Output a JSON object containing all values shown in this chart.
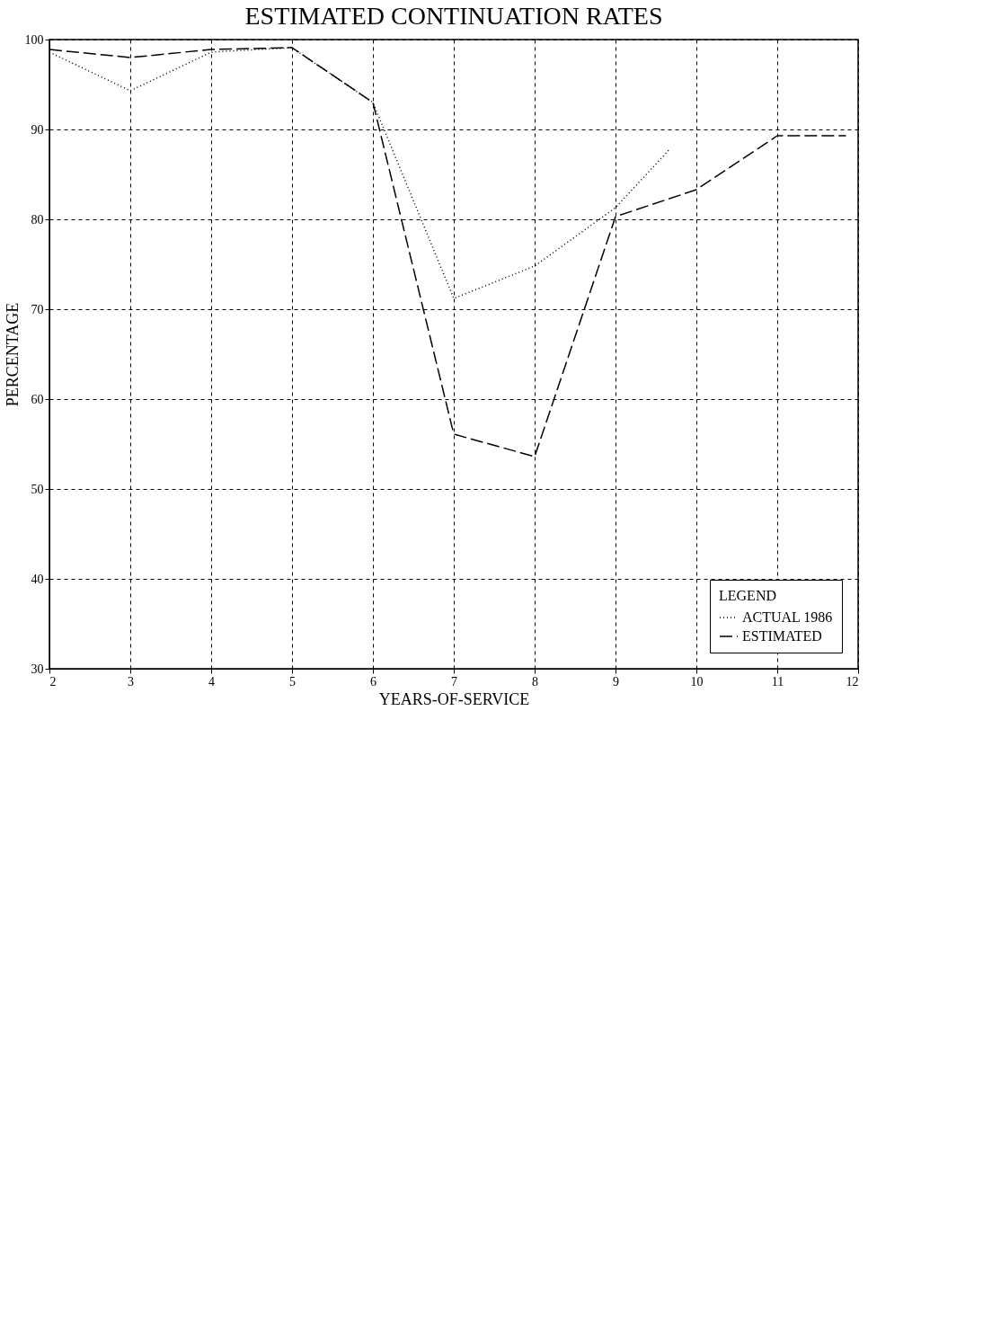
{
  "chart_data": {
    "type": "line",
    "title": "ESTIMATED CONTINUATION RATES",
    "xlabel": "YEARS-OF-SERVICE",
    "ylabel": "PERCENTAGE",
    "legend_title": "LEGEND",
    "xlim": [
      2,
      12
    ],
    "xticks": [
      2,
      3,
      4,
      5,
      6,
      7,
      8,
      9,
      10,
      11,
      12
    ],
    "ylim": [
      30,
      100
    ],
    "yticks": [
      30,
      40,
      50,
      60,
      70,
      80,
      90,
      100
    ],
    "grid": true,
    "legend": "bottom right",
    "marker": "none",
    "series": [
      {
        "name": "ACTUAL 1986",
        "color": "#000000",
        "line_style": "dotted",
        "x": [
          2,
          3,
          4,
          5,
          6,
          7,
          8,
          9,
          9.67
        ],
        "values": [
          98.6,
          94.3,
          98.6,
          99.1,
          93.0,
          71.2,
          74.8,
          81.3,
          87.8
        ]
      },
      {
        "name": "ESTIMATED",
        "color": "#000000",
        "line_style": "dashed",
        "x": [
          2,
          3,
          4,
          5,
          6,
          7,
          8,
          9,
          10,
          11,
          11.85
        ],
        "values": [
          98.9,
          98.0,
          98.9,
          99.1,
          93.0,
          56.1,
          53.6,
          80.3,
          83.3,
          89.3,
          89.3
        ]
      }
    ]
  }
}
